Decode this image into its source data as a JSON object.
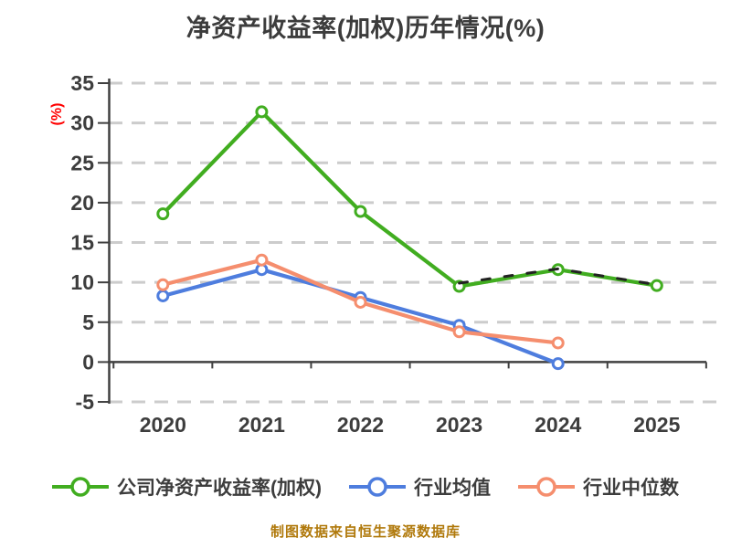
{
  "source_caption": "制图数据来自恒生聚源数据库",
  "colors": {
    "background": "#ffffff",
    "grid": "#cccccc",
    "axis": "#404040",
    "text": "#3d3d3d",
    "accent_red": "#ff0000",
    "caption": "#b0790b",
    "series_green": "#41ad20",
    "series_blue": "#4e7dde",
    "series_orange": "#f58e6e"
  },
  "chart_data": {
    "type": "line",
    "title": "净资产收益率(加权)历年情况(%)",
    "ylabel": "(%)",
    "xlabel": "",
    "categories": [
      "2020",
      "2021",
      "2022",
      "2023",
      "2024",
      "2025"
    ],
    "yticks": [
      35,
      30,
      25,
      20,
      15,
      10,
      5,
      0,
      -5
    ],
    "ylim": [
      -5,
      35
    ],
    "grid": "horizontal-dashed",
    "legend_position": "bottom",
    "series": [
      {
        "id": "company-roe-weighted",
        "name": "公司净资产收益率(加权)",
        "color": "#41ad20",
        "values": [
          18.6,
          31.4,
          18.9,
          9.5,
          11.6,
          9.6
        ],
        "dashed": false,
        "in_legend": true
      },
      {
        "id": "industry-mean",
        "name": "行业均值",
        "color": "#4e7dde",
        "values": [
          8.3,
          11.6,
          8.1,
          4.6,
          -0.2,
          null
        ],
        "dashed": false,
        "in_legend": true
      },
      {
        "id": "industry-median",
        "name": "行业中位数",
        "color": "#f58e6e",
        "values": [
          9.7,
          12.8,
          7.5,
          3.8,
          2.4,
          null
        ],
        "dashed": false,
        "in_legend": true
      },
      {
        "id": "overlay-dashed",
        "name": "",
        "color": "#222222",
        "values": [
          null,
          null,
          null,
          9.9,
          11.7,
          9.7
        ],
        "dashed": true,
        "markers": false,
        "in_legend": false
      }
    ]
  }
}
